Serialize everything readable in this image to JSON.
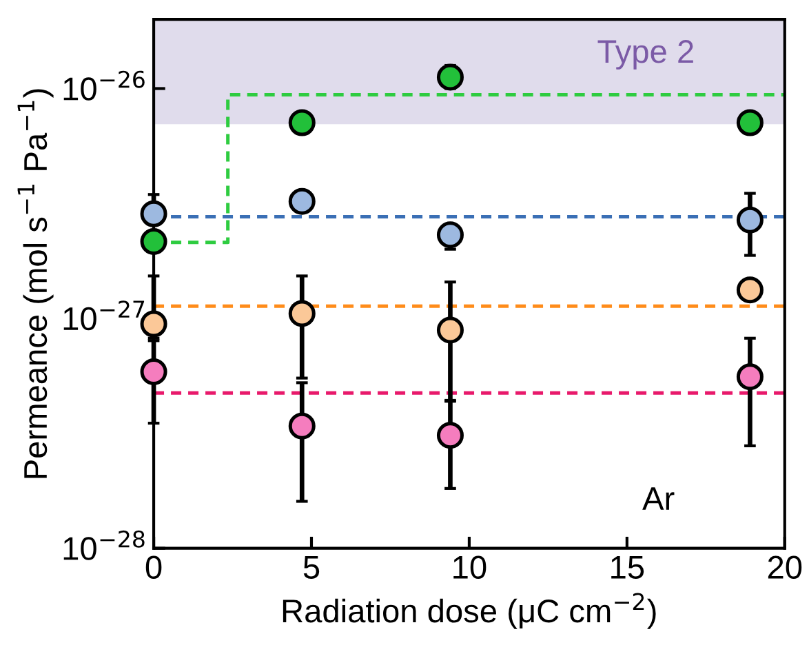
{
  "chart_data": {
    "type": "scatter",
    "xlabel": "Radiation dose (μC cm$^{−2}$)",
    "ylabel": "Permeance (mol s$^{−1}$ Pa$^{−1}$)",
    "log": "y",
    "xlim": [
      0,
      20
    ],
    "xticks": [
      0,
      5,
      10,
      15,
      20
    ],
    "ylim": [
      1e-28,
      2e-26
    ],
    "yticks": [
      {
        "value": 1e-28,
        "label": "10$^{−28}$"
      },
      {
        "value": 1e-27,
        "label": "10$^{−27}$"
      },
      {
        "value": 1e-26,
        "label": "10$^{−26}$"
      }
    ],
    "grid": false,
    "marker": "circle",
    "series": [
      {
        "color": "#22c03a",
        "x": [
          0,
          4.7,
          9.4,
          18.9
        ],
        "values": [
          2.16e-27,
          7.1e-27,
          1.12e-26,
          7.1e-27
        ],
        "errors": [
          null,
          null,
          [
            1e-26,
            1.26e-26
          ],
          null
        ]
      },
      {
        "color": "#9db9e0",
        "x": [
          0,
          4.7,
          9.4,
          18.9
        ],
        "values": [
          2.85e-27,
          3.23e-27,
          2.31e-27,
          2.68e-27
        ],
        "errors": [
          [
            2.85e-27,
            3.46e-27
          ],
          null,
          [
            2e-27,
            2.56e-27
          ],
          [
            1.88e-27,
            3.5e-27
          ]
        ]
      },
      {
        "color": "#fbc898",
        "x": [
          0,
          4.7,
          9.4,
          18.9
        ],
        "values": [
          9.46e-28,
          1.05e-27,
          8.9e-28,
          1.33e-27
        ],
        "errors": [
          [
            8.2e-28,
            1.53e-27
          ],
          [
            5.5e-28,
            1.53e-27
          ],
          [
            4.36e-28,
            1.44e-27
          ],
          null
        ]
      },
      {
        "color": "#f57dbe",
        "x": [
          0,
          4.7,
          9.4,
          18.9
        ],
        "values": [
          5.86e-28,
          3.4e-28,
          3.1e-28,
          5.57e-28
        ],
        "errors": [
          [
            3.5e-28,
            8e-28
          ],
          [
            1.6e-28,
            5.25e-28
          ],
          [
            1.82e-28,
            4.4e-28
          ],
          [
            2.79e-28,
            8.2e-28
          ]
        ]
      },
      {
        "type": "step",
        "color": "#2ecc40",
        "line_style": "dashed",
        "marker": "none",
        "x": [
          0,
          2.35,
          20
        ],
        "values": [
          2.14e-27,
          9.4e-27,
          9.4e-27
        ]
      }
    ],
    "ref_lines": [
      {
        "axis": "y",
        "value": 2.77e-27,
        "color": "#3a6fb5",
        "line_style": "dashed"
      },
      {
        "axis": "y",
        "value": 1.13e-27,
        "color": "#ff8c1a",
        "line_style": "dashed"
      },
      {
        "axis": "y",
        "value": 4.74e-28,
        "color": "#e8196b",
        "line_style": "dashed"
      }
    ],
    "bands": [
      {
        "axis": "y",
        "from": 7e-27,
        "to": 2e-26,
        "label": "Type 2",
        "color": "#e0dcec"
      }
    ],
    "annotations": [
      "Ar"
    ]
  }
}
